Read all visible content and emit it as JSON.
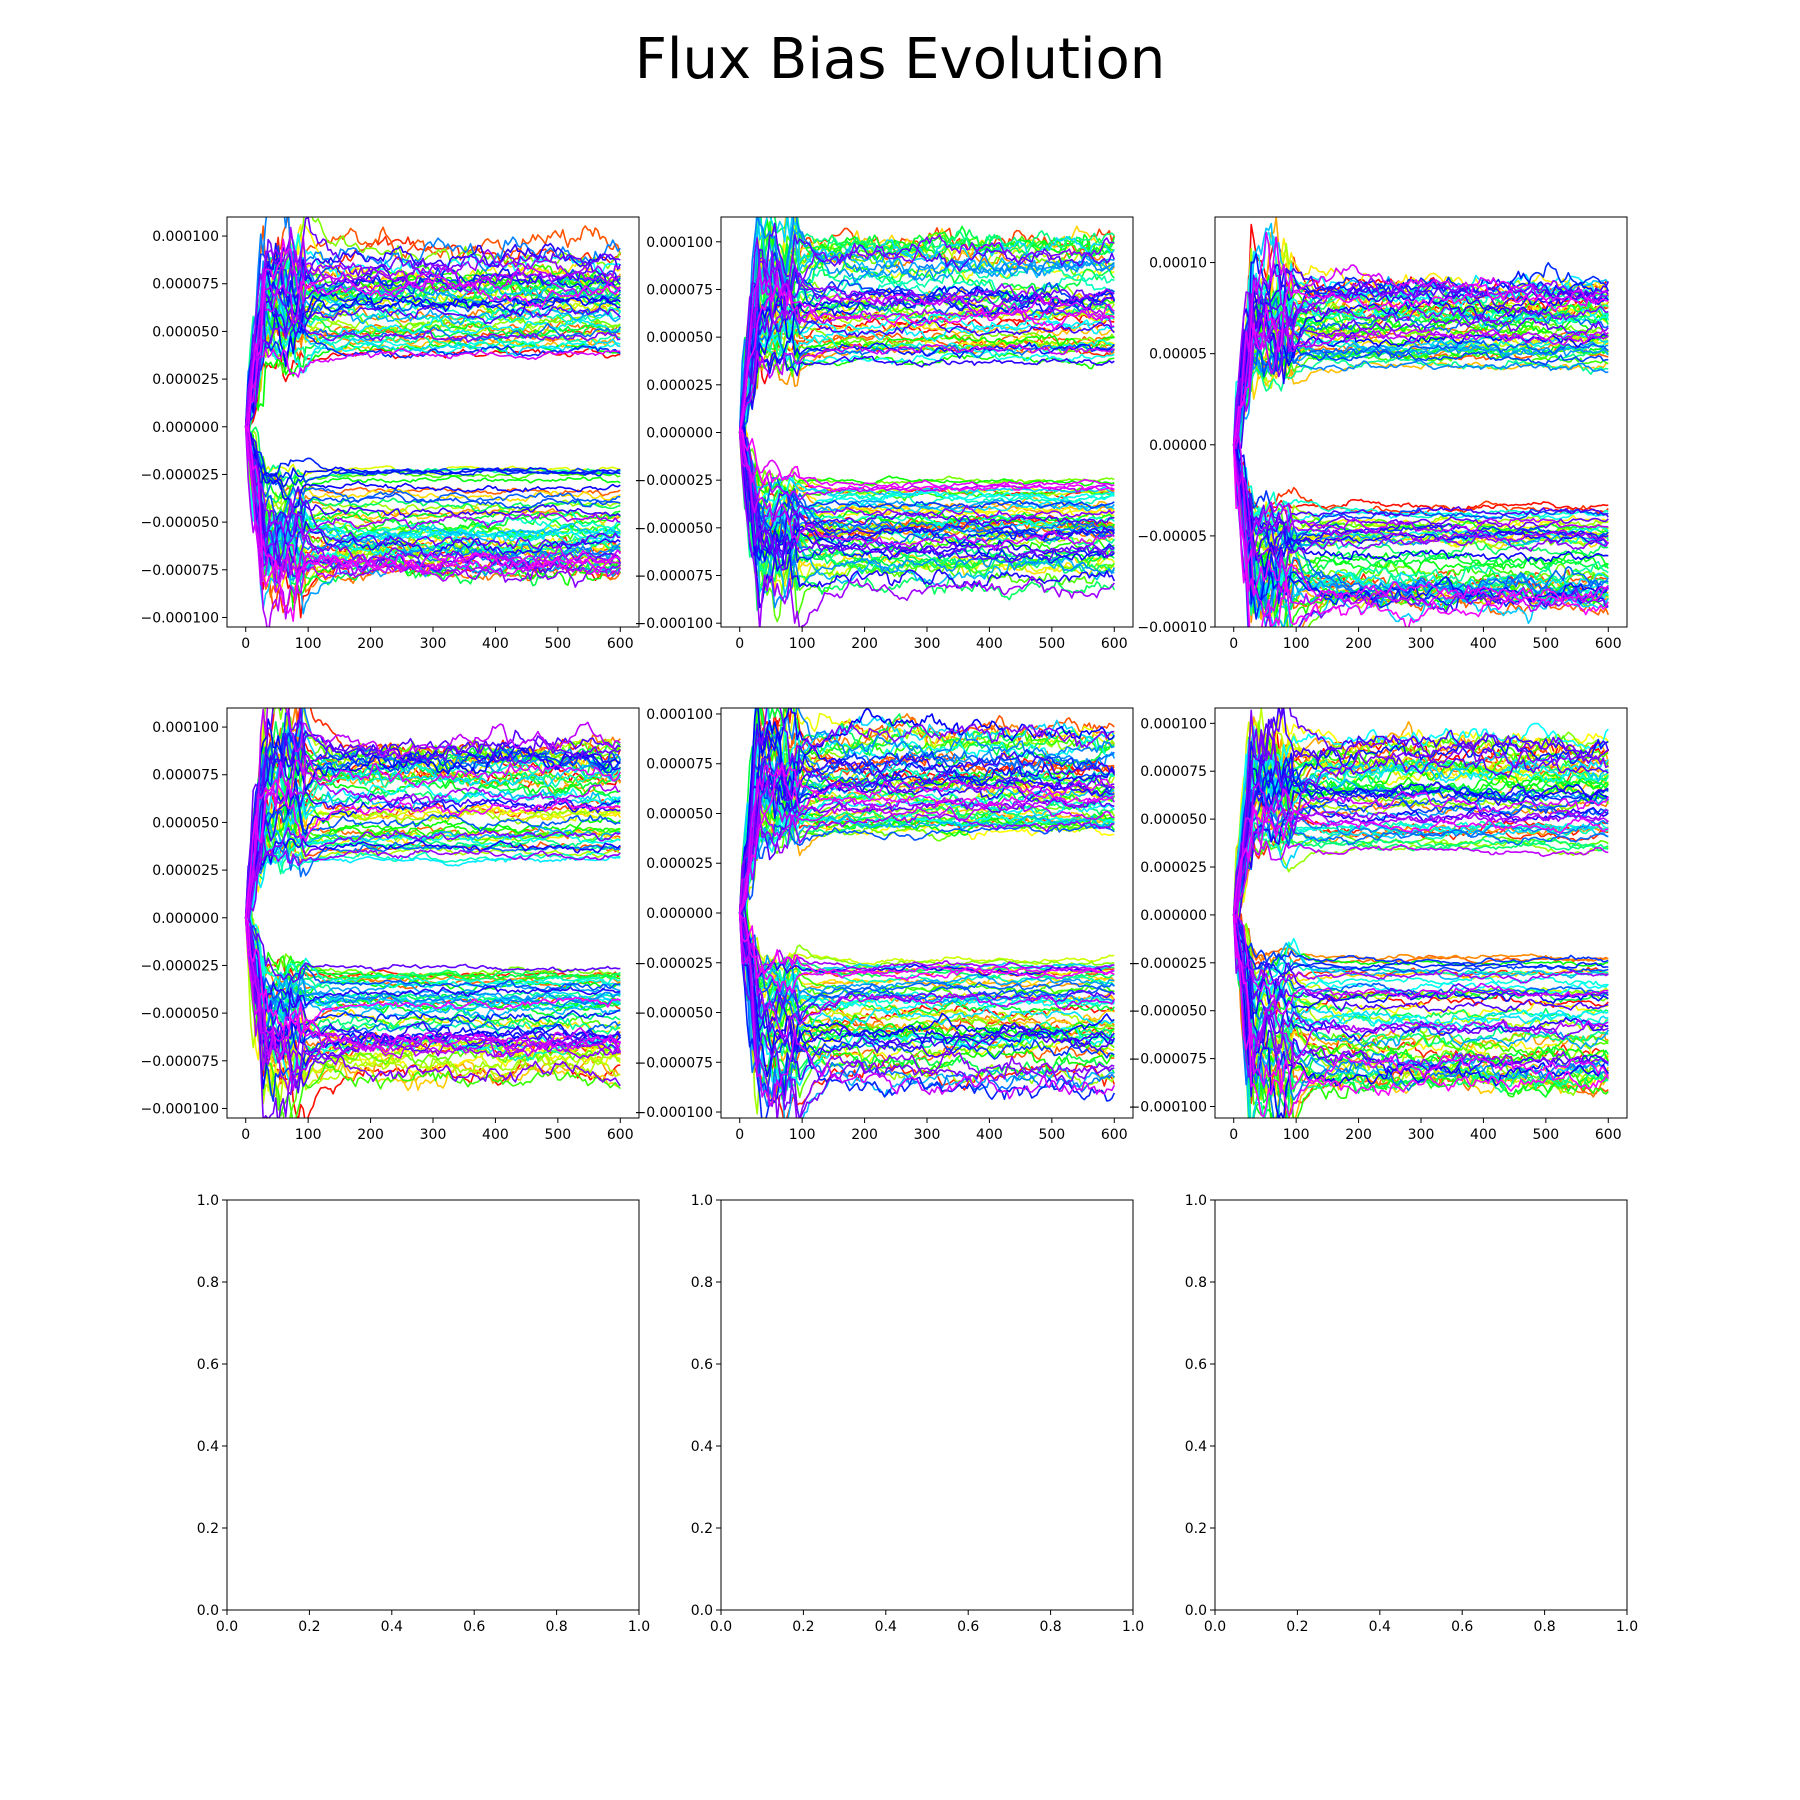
{
  "title": "Flux Bias Evolution",
  "chart_data": [
    {
      "type": "line",
      "panel": "row1-col1",
      "xlim": [
        -30,
        630
      ],
      "ylim": [
        -0.000105,
        0.00011
      ],
      "xticks": [
        0,
        100,
        200,
        300,
        400,
        500,
        600
      ],
      "yticks": [
        0.0001,
        7.5e-05,
        5e-05,
        2.5e-05,
        0.0,
        -2.5e-05,
        -5e-05,
        -7.5e-05,
        -0.0001
      ],
      "ytick_labels": [
        "0.000100",
        "0.000075",
        "0.000050",
        "0.000025",
        "0.000000",
        "−0.000025",
        "−0.000050",
        "−0.000075",
        "−0.000100"
      ],
      "series_count": 120,
      "x_range": [
        0,
        600
      ],
      "upper_band": [
        3.8e-05,
        9.5e-05
      ],
      "lower_band": [
        -7.8e-05,
        -2.2e-05
      ],
      "colormap": "hsv"
    },
    {
      "type": "line",
      "panel": "row1-col2",
      "xlim": [
        -30,
        630
      ],
      "ylim": [
        -0.000102,
        0.000113
      ],
      "xticks": [
        0,
        100,
        200,
        300,
        400,
        500,
        600
      ],
      "yticks": [
        0.0001,
        7.5e-05,
        5e-05,
        2.5e-05,
        0.0,
        -2.5e-05,
        -5e-05,
        -7.5e-05,
        -0.0001
      ],
      "ytick_labels": [
        "0.000100",
        "0.000075",
        "0.000050",
        "0.000025",
        "0.000000",
        "−0.000025",
        "−0.000050",
        "−0.000075",
        "−0.000100"
      ],
      "series_count": 120,
      "x_range": [
        0,
        600
      ],
      "upper_band": [
        3.6e-05,
        0.0001
      ],
      "lower_band": [
        -8.2e-05,
        -2.5e-05
      ],
      "colormap": "hsv"
    },
    {
      "type": "line",
      "panel": "row1-col3",
      "xlim": [
        -30,
        630
      ],
      "ylim": [
        -0.0001,
        0.000125
      ],
      "xticks": [
        0,
        100,
        200,
        300,
        400,
        500,
        600
      ],
      "yticks": [
        0.0001,
        5e-05,
        0.0,
        -5e-05,
        -0.0001
      ],
      "ytick_labels": [
        "0.00010",
        "0.00005",
        "0.00000",
        "−0.00005",
        "−0.00010"
      ],
      "series_count": 120,
      "x_range": [
        0,
        600
      ],
      "upper_band": [
        4e-05,
        9e-05
      ],
      "lower_band": [
        -9e-05,
        -3.3e-05
      ],
      "colormap": "hsv"
    },
    {
      "type": "line",
      "panel": "row2-col1",
      "xlim": [
        -30,
        630
      ],
      "ylim": [
        -0.000105,
        0.00011
      ],
      "xticks": [
        0,
        100,
        200,
        300,
        400,
        500,
        600
      ],
      "yticks": [
        0.0001,
        7.5e-05,
        5e-05,
        2.5e-05,
        0.0,
        -2.5e-05,
        -5e-05,
        -7.5e-05,
        -0.0001
      ],
      "ytick_labels": [
        "0.000100",
        "0.000075",
        "0.000050",
        "0.000025",
        "0.000000",
        "−0.000025",
        "−0.000050",
        "−0.000075",
        "−0.000100"
      ],
      "series_count": 120,
      "x_range": [
        0,
        600
      ],
      "upper_band": [
        3e-05,
        9.2e-05
      ],
      "lower_band": [
        -8.5e-05,
        -2.5e-05
      ],
      "colormap": "hsv"
    },
    {
      "type": "line",
      "panel": "row2-col2",
      "xlim": [
        -30,
        630
      ],
      "ylim": [
        -0.000103,
        0.000103
      ],
      "xticks": [
        0,
        100,
        200,
        300,
        400,
        500,
        600
      ],
      "yticks": [
        0.0001,
        7.5e-05,
        5e-05,
        2.5e-05,
        0.0,
        -2.5e-05,
        -5e-05,
        -7.5e-05,
        -0.0001
      ],
      "ytick_labels": [
        "0.000100",
        "0.000075",
        "0.000050",
        "0.000025",
        "0.000000",
        "−0.000025",
        "−0.000050",
        "−0.000075",
        "−0.000100"
      ],
      "series_count": 120,
      "x_range": [
        0,
        600
      ],
      "upper_band": [
        4e-05,
        9.3e-05
      ],
      "lower_band": [
        -9e-05,
        -2.2e-05
      ],
      "colormap": "hsv"
    },
    {
      "type": "line",
      "panel": "row2-col3",
      "xlim": [
        -30,
        630
      ],
      "ylim": [
        -0.000106,
        0.000108
      ],
      "xticks": [
        0,
        100,
        200,
        300,
        400,
        500,
        600
      ],
      "yticks": [
        0.0001,
        7.5e-05,
        5e-05,
        2.5e-05,
        0.0,
        -2.5e-05,
        -5e-05,
        -7.5e-05,
        -0.0001
      ],
      "ytick_labels": [
        "0.000100",
        "0.000075",
        "0.000050",
        "0.000025",
        "0.000000",
        "−0.000025",
        "−0.000050",
        "−0.000075",
        "−0.000100"
      ],
      "series_count": 120,
      "x_range": [
        0,
        600
      ],
      "upper_band": [
        3.3e-05,
        9.3e-05
      ],
      "lower_band": [
        -8.8e-05,
        -2.2e-05
      ],
      "colormap": "hsv"
    },
    {
      "type": "line",
      "panel": "row3-col1",
      "empty": true,
      "xlim": [
        0,
        1
      ],
      "ylim": [
        0,
        1
      ],
      "xticks": [
        0.0,
        0.2,
        0.4,
        0.6,
        0.8,
        1.0
      ],
      "yticks": [
        0.0,
        0.2,
        0.4,
        0.6,
        0.8,
        1.0
      ],
      "xtick_labels": [
        "0.0",
        "0.2",
        "0.4",
        "0.6",
        "0.8",
        "1.0"
      ],
      "ytick_labels": [
        "0.0",
        "0.2",
        "0.4",
        "0.6",
        "0.8",
        "1.0"
      ]
    },
    {
      "type": "line",
      "panel": "row3-col2",
      "empty": true,
      "xlim": [
        0,
        1
      ],
      "ylim": [
        0,
        1
      ],
      "xticks": [
        0.0,
        0.2,
        0.4,
        0.6,
        0.8,
        1.0
      ],
      "yticks": [
        0.0,
        0.2,
        0.4,
        0.6,
        0.8,
        1.0
      ],
      "xtick_labels": [
        "0.0",
        "0.2",
        "0.4",
        "0.6",
        "0.8",
        "1.0"
      ],
      "ytick_labels": [
        "0.0",
        "0.2",
        "0.4",
        "0.6",
        "0.8",
        "1.0"
      ]
    },
    {
      "type": "line",
      "panel": "row3-col3",
      "empty": true,
      "xlim": [
        0,
        1
      ],
      "ylim": [
        0,
        1
      ],
      "xticks": [
        0.0,
        0.2,
        0.4,
        0.6,
        0.8,
        1.0
      ],
      "yticks": [
        0.0,
        0.2,
        0.4,
        0.6,
        0.8,
        1.0
      ],
      "xtick_labels": [
        "0.0",
        "0.2",
        "0.4",
        "0.6",
        "0.8",
        "1.0"
      ],
      "ytick_labels": [
        "0.0",
        "0.2",
        "0.4",
        "0.6",
        "0.8",
        "1.0"
      ]
    }
  ]
}
